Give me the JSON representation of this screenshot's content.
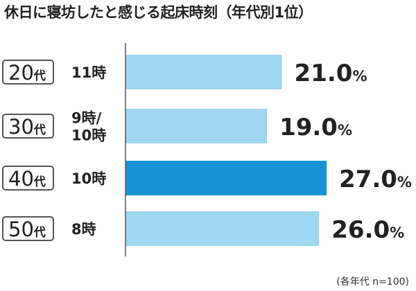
{
  "chart_data": {
    "type": "bar",
    "orientation": "horizontal",
    "title": "休日に寝坊したと感じる起床時刻（年代別1位）",
    "categories": [
      "20代",
      "30代",
      "40代",
      "50代"
    ],
    "age_groups": [
      {
        "number": "20",
        "suffix": "代"
      },
      {
        "number": "30",
        "suffix": "代"
      },
      {
        "number": "40",
        "suffix": "代"
      },
      {
        "number": "50",
        "suffix": "代"
      }
    ],
    "times": [
      [
        "11時"
      ],
      [
        "9時/",
        "10時"
      ],
      [
        "10時"
      ],
      [
        "8時"
      ]
    ],
    "values": [
      21.0,
      19.0,
      27.0,
      26.0
    ],
    "value_labels": [
      "21.0",
      "19.0",
      "27.0",
      "26.0"
    ],
    "unit": "%",
    "highlight_index": 2,
    "xlim": [
      0,
      27.0
    ],
    "grid": false,
    "legend": "none",
    "note": "(各年代 n=100)"
  },
  "colors": {
    "bar": "#9fd6f0",
    "bar_highlight": "#1793d4",
    "axis": "#555555",
    "badge_border": "#555555",
    "text": "#222222"
  }
}
